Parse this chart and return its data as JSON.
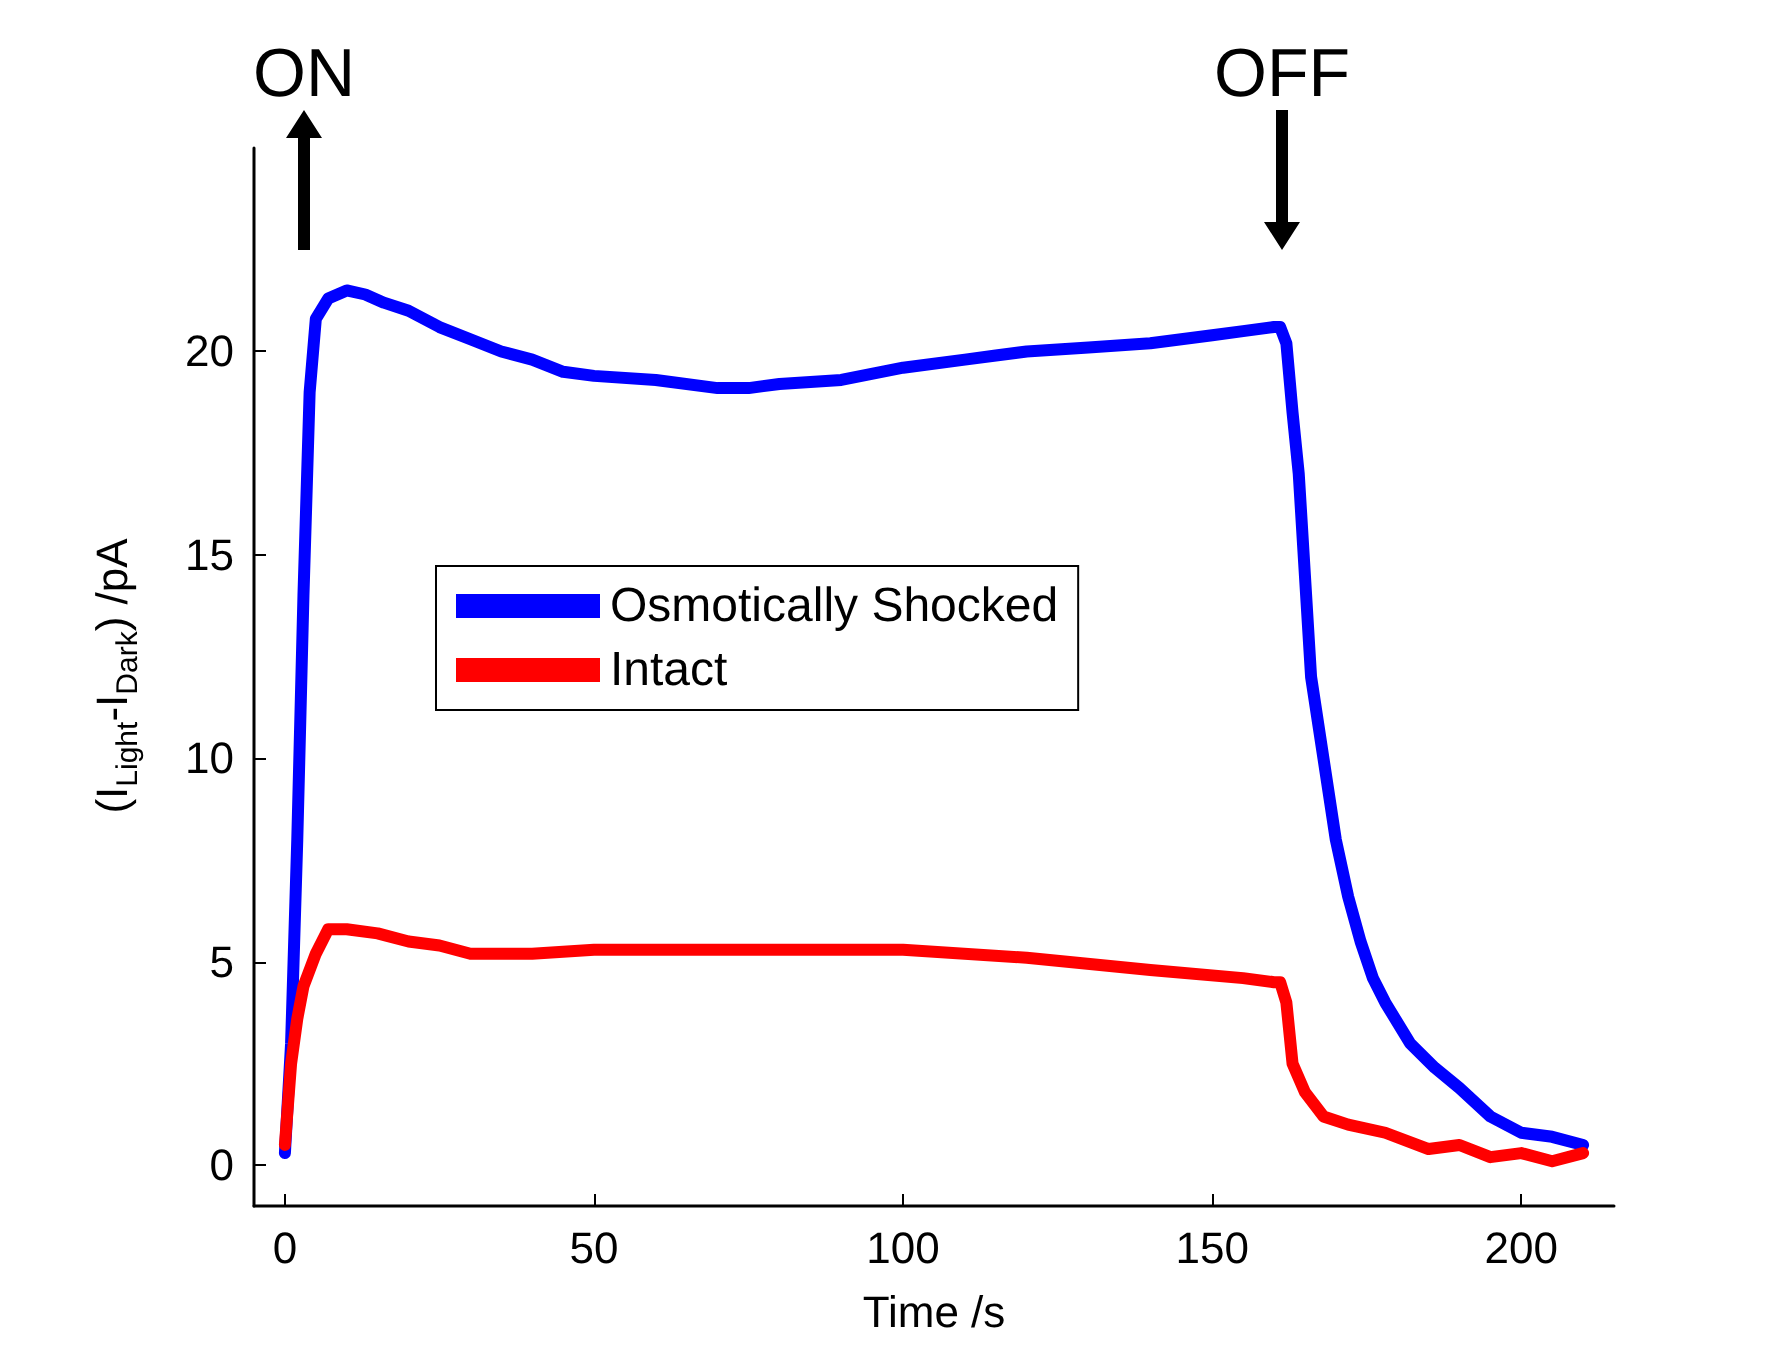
{
  "chart_data": {
    "type": "line",
    "xlabel": "Time /s",
    "ylabel": "(I$_{Light}$-I$_{Dark}$) /pA",
    "xlim": [
      -5,
      215
    ],
    "ylim": [
      -1,
      25
    ],
    "xticks": [
      0,
      50,
      100,
      150,
      200
    ],
    "yticks": [
      0,
      5,
      10,
      15,
      20
    ],
    "grid": false,
    "legend": "left",
    "marker": "none",
    "line_style": "solid",
    "annotations": [
      "ON",
      "OFF"
    ],
    "series": [
      {
        "name": "Osmotically Shocked",
        "color": "#0000ff",
        "x": [
          0,
          1,
          2,
          3,
          4,
          5,
          7,
          10,
          13,
          16,
          20,
          25,
          30,
          35,
          40,
          45,
          50,
          60,
          70,
          75,
          80,
          90,
          100,
          110,
          115,
          120,
          130,
          140,
          145,
          150,
          155,
          160,
          161,
          162,
          163,
          164,
          166,
          168,
          170,
          172,
          174,
          176,
          178,
          182,
          186,
          190,
          195,
          200,
          205,
          210
        ],
        "values": [
          0.3,
          3,
          8,
          14,
          19,
          20.8,
          21.3,
          21.5,
          21.4,
          21.2,
          21,
          20.6,
          20.3,
          20,
          19.8,
          19.5,
          19.4,
          19.3,
          19.1,
          19.1,
          19.2,
          19.3,
          19.6,
          19.8,
          19.9,
          20,
          20.1,
          20.2,
          20.3,
          20.4,
          20.5,
          20.6,
          20.6,
          20.2,
          18.5,
          17,
          12,
          10,
          8,
          6.6,
          5.5,
          4.6,
          4,
          3,
          2.4,
          1.9,
          1.2,
          0.8,
          0.7,
          0.5
        ]
      },
      {
        "name": "Intact",
        "color": "#ff0000",
        "x": [
          0,
          1,
          2,
          3,
          5,
          7,
          10,
          15,
          20,
          25,
          30,
          40,
          50,
          60,
          80,
          100,
          120,
          140,
          155,
          160,
          161,
          162,
          163,
          165,
          168,
          172,
          178,
          185,
          190,
          195,
          200,
          205,
          210
        ],
        "values": [
          0.5,
          2.5,
          3.6,
          4.4,
          5.2,
          5.8,
          5.8,
          5.7,
          5.5,
          5.4,
          5.2,
          5.2,
          5.3,
          5.3,
          5.3,
          5.3,
          5.1,
          4.8,
          4.6,
          4.5,
          4.5,
          4,
          2.5,
          1.8,
          1.2,
          1,
          0.8,
          0.4,
          0.5,
          0.2,
          0.3,
          0.1,
          0.3
        ]
      }
    ]
  }
}
